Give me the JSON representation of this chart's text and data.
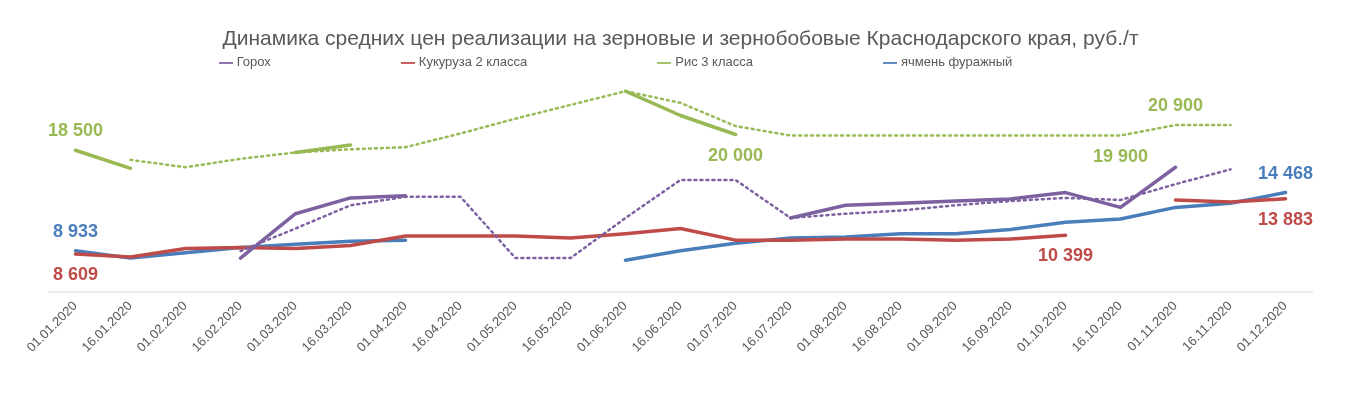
{
  "chart_data": {
    "type": "line",
    "title": "Динамика средних цен реализации на зерновые и зернобобовые Краснодарского края, руб./т",
    "categories": [
      "01.01.2020",
      "16.01.2020",
      "01.02.2020",
      "16.02.2020",
      "01.03.2020",
      "16.03.2020",
      "01.04.2020",
      "16.04.2020",
      "01.05.2020",
      "16.05.2020",
      "01.06.2020",
      "16.06.2020",
      "01.07.2020",
      "16.07.2020",
      "01.08.2020",
      "16.08.2020",
      "01.09.2020",
      "16.09.2020",
      "01.10.2020",
      "16.10.2020",
      "01.11.2020",
      "16.11.2020",
      "01.12.2020"
    ],
    "tick_labels": "x",
    "grid": false,
    "legend": "top",
    "marker": "none",
    "series": [
      {
        "name": "ячмень фуражный",
        "color": "#4a7ebb",
        "line_style": "solid",
        "values": [
          8933,
          8229,
          8732,
          9235,
          9537,
          9838,
          9939,
          null,
          null,
          null,
          8028,
          8933,
          9637,
          10140,
          10241,
          10543,
          10543,
          10945,
          11649,
          11951,
          13058,
          13460,
          14468
        ],
        "value_labels": [
          "8 933",
          null,
          null,
          null,
          null,
          null,
          null,
          null,
          null,
          null,
          null,
          null,
          null,
          null,
          null,
          null,
          null,
          null,
          null,
          null,
          null,
          null,
          "14 468"
        ]
      },
      {
        "name": "Кукуруза 2 класса",
        "color": "#be4b48",
        "line_style": "solid",
        "values": [
          8609,
          8329,
          9134,
          9235,
          9134,
          9436,
          10341,
          10341,
          10341,
          10140,
          10543,
          11046,
          9939,
          9939,
          10040,
          10040,
          9939,
          10040,
          10399,
          null,
          13762,
          13560,
          13883
        ],
        "value_labels": [
          "8 609",
          null,
          null,
          null,
          null,
          null,
          null,
          null,
          null,
          null,
          null,
          null,
          null,
          null,
          null,
          null,
          null,
          null,
          "10 399",
          null,
          null,
          null,
          "13 883"
        ]
      },
      {
        "name": "Рис 3 класса",
        "color": "#98b954",
        "line_style": "solid",
        "values": [
          18500,
          16780,
          null,
          null,
          18289,
          18993,
          null,
          null,
          null,
          null,
          24124,
          21810,
          20000,
          null,
          null,
          null,
          null,
          null,
          null,
          null,
          null,
          null,
          null
        ],
        "value_labels": [
          "18 500",
          null,
          null,
          null,
          null,
          null,
          null,
          null,
          null,
          null,
          null,
          null,
          "20 000",
          null,
          null,
          null,
          null,
          null,
          null,
          null,
          null,
          null,
          null
        ]
      },
      {
        "name": "Горох",
        "color": "#7d60a0",
        "line_style": "solid",
        "values": [
          null,
          null,
          null,
          8229,
          12454,
          13963,
          14164,
          null,
          null,
          null,
          null,
          null,
          null,
          12052,
          13259,
          13460,
          13661,
          13862,
          14466,
          13058,
          16880,
          null,
          null
        ]
      },
      {
        "color": "#98b954",
        "line_style": "dotted",
        "values": [
          null,
          17585,
          16880,
          17686,
          18289,
          18591,
          18792,
          20101,
          21509,
          22817,
          24124,
          23017,
          20804,
          19900,
          19900,
          19900,
          19900,
          19900,
          19900,
          19900,
          20900,
          20900,
          null
        ],
        "value_labels": [
          null,
          null,
          null,
          null,
          null,
          null,
          null,
          null,
          null,
          null,
          null,
          null,
          null,
          null,
          null,
          null,
          null,
          null,
          null,
          "19 900",
          "20 900",
          null,
          null
        ]
      },
      {
        "color": "#7d60a0",
        "line_style": "dotted",
        "values": [
          null,
          null,
          null,
          8900,
          11046,
          13259,
          14064,
          14064,
          8229,
          8229,
          12052,
          15673,
          15673,
          12052,
          12454,
          12756,
          13259,
          13661,
          13963,
          13762,
          15271,
          16679,
          null
        ]
      }
    ]
  }
}
